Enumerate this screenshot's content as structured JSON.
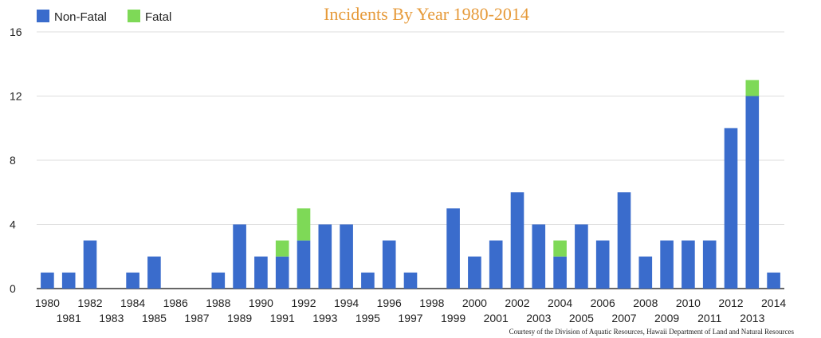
{
  "colors": {
    "non_fatal": "#3a6ccc",
    "fatal": "#7ed957",
    "title": "#e69a3a",
    "grid": "#dddddd",
    "axis": "#333333"
  },
  "chart_data": {
    "type": "bar",
    "stacked": true,
    "title": "Incidents By Year 1980-2014",
    "credit": "Courtesy of the Division of Aquatic Resources, Hawaii Department of Land and Natural Resources",
    "legend_position": "top-left",
    "grid": true,
    "ylim": [
      0,
      16
    ],
    "yticks": [
      "0",
      "4",
      "8",
      "12",
      "16"
    ],
    "categories": [
      "1980",
      "1981",
      "1982",
      "1983",
      "1984",
      "1985",
      "1986",
      "1987",
      "1988",
      "1989",
      "1990",
      "1991",
      "1992",
      "1993",
      "1994",
      "1995",
      "1996",
      "1997",
      "1998",
      "1999",
      "2000",
      "2001",
      "2002",
      "2003",
      "2004",
      "2005",
      "2006",
      "2007",
      "2008",
      "2009",
      "2010",
      "2011",
      "2012",
      "2013",
      "2014"
    ],
    "series": [
      {
        "name": "Non-Fatal",
        "values": [
          1,
          1,
          3,
          0,
          1,
          2,
          0,
          0,
          1,
          4,
          2,
          2,
          3,
          4,
          4,
          1,
          3,
          1,
          0,
          5,
          2,
          3,
          6,
          4,
          2,
          4,
          3,
          6,
          2,
          3,
          3,
          3,
          10,
          12,
          1
        ]
      },
      {
        "name": "Fatal",
        "values": [
          0,
          0,
          0,
          0,
          0,
          0,
          0,
          0,
          0,
          0,
          0,
          1,
          2,
          0,
          0,
          0,
          0,
          0,
          0,
          0,
          0,
          0,
          0,
          0,
          1,
          0,
          0,
          0,
          0,
          0,
          0,
          0,
          0,
          1,
          0
        ]
      }
    ]
  }
}
